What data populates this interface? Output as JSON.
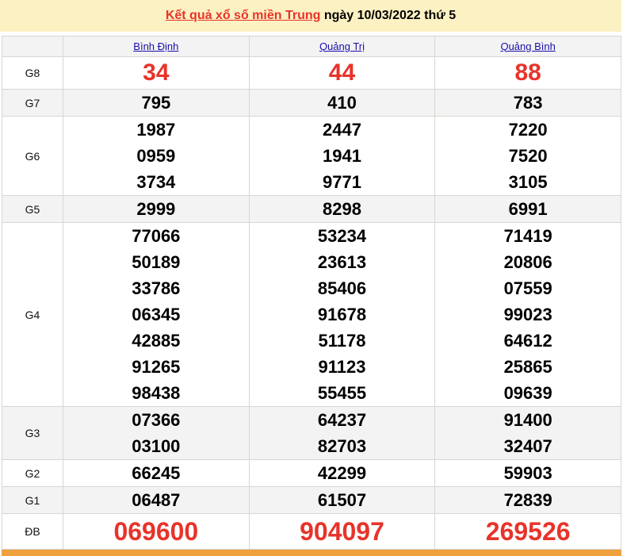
{
  "title": {
    "link": "Kết quả xổ số miền Trung",
    "rest": " ngày 10/03/2022 thứ 5"
  },
  "provinces": [
    "Bình Định",
    "Quảng Trị",
    "Quảng Bình"
  ],
  "prizes": [
    {
      "label": "G8",
      "values": [
        [
          "34"
        ],
        [
          "44"
        ],
        [
          "88"
        ]
      ]
    },
    {
      "label": "G7",
      "values": [
        [
          "795"
        ],
        [
          "410"
        ],
        [
          "783"
        ]
      ]
    },
    {
      "label": "G6",
      "values": [
        [
          "1987",
          "0959",
          "3734"
        ],
        [
          "2447",
          "1941",
          "9771"
        ],
        [
          "7220",
          "7520",
          "3105"
        ]
      ]
    },
    {
      "label": "G5",
      "values": [
        [
          "2999"
        ],
        [
          "8298"
        ],
        [
          "6991"
        ]
      ]
    },
    {
      "label": "G4",
      "values": [
        [
          "77066",
          "50189",
          "33786",
          "06345",
          "42885",
          "91265",
          "98438"
        ],
        [
          "53234",
          "23613",
          "85406",
          "91678",
          "51178",
          "91123",
          "55455"
        ],
        [
          "71419",
          "20806",
          "07559",
          "99023",
          "64612",
          "25865",
          "09639"
        ]
      ]
    },
    {
      "label": "G3",
      "values": [
        [
          "07366",
          "03100"
        ],
        [
          "64237",
          "82703"
        ],
        [
          "91400",
          "32407"
        ]
      ]
    },
    {
      "label": "G2",
      "values": [
        [
          "66245"
        ],
        [
          "42299"
        ],
        [
          "59903"
        ]
      ]
    },
    {
      "label": "G1",
      "values": [
        [
          "06487"
        ],
        [
          "61507"
        ],
        [
          "72839"
        ]
      ]
    },
    {
      "label": "ĐB",
      "values": [
        [
          "069600"
        ],
        [
          "904097"
        ],
        [
          "269526"
        ]
      ]
    }
  ],
  "colors": {
    "accent": "#e8332a",
    "banner": "#fcf1c2",
    "footer": "#f0a03d"
  }
}
